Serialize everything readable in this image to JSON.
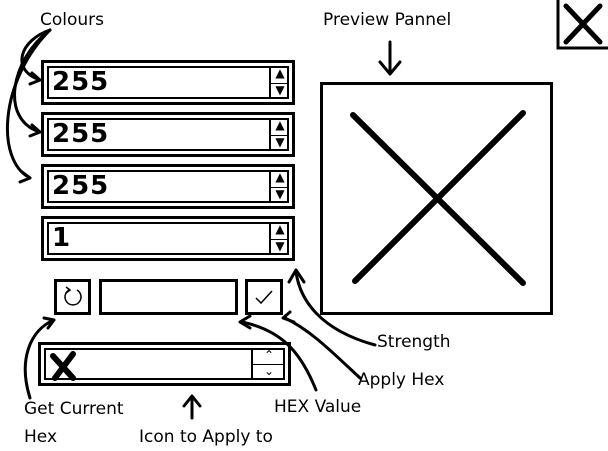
{
  "labels": {
    "colours": "Colours",
    "preview_pannel": "Preview Pannel",
    "strength": "Strength",
    "apply_hex": "Apply Hex",
    "hex_value": "HEX Value",
    "get_current_hex_line1": "Get Current",
    "get_current_hex_line2": "Hex",
    "icon_to_apply_to": "Icon to Apply to"
  },
  "fields": {
    "red": "255",
    "green": "255",
    "blue": "255",
    "strength": "1",
    "hex": ""
  },
  "icons": {
    "close": "close-icon",
    "preview": "x-placeholder",
    "refresh": "refresh-icon",
    "check": "check-icon",
    "selected_icon": "x-mark-icon"
  }
}
